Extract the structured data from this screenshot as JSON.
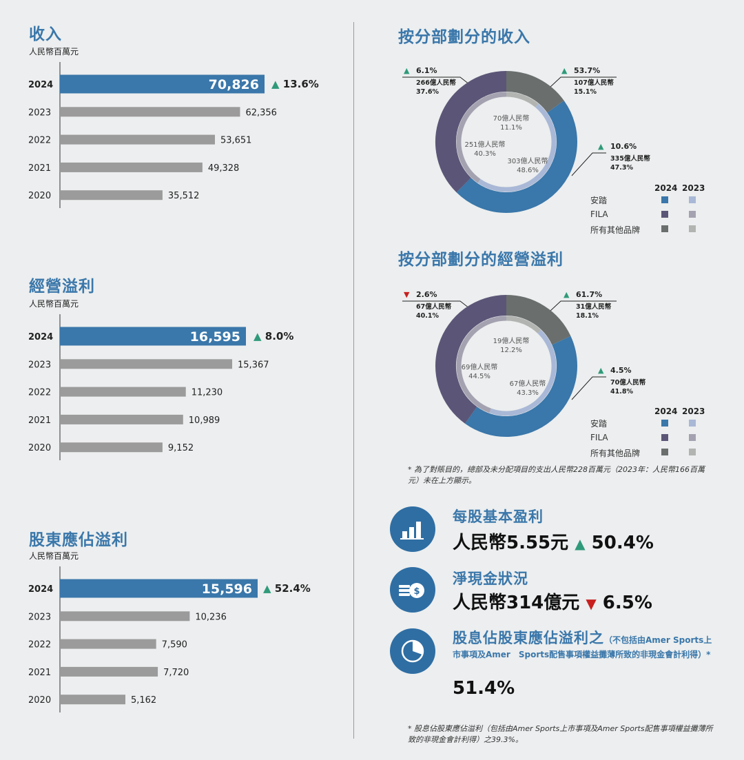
{
  "colors": {
    "accent": "#3a77aa",
    "bar_current": "#3a77aa",
    "bar_prior": "#9b9b9b",
    "anta_2024": "#3a77aa",
    "anta_2023": "#a9b8d6",
    "fila_2024": "#5b5677",
    "fila_2023": "#a4a2b0",
    "other_2024": "#6a6f6d",
    "other_2023": "#b2b4b2",
    "up": "#2f9a7a",
    "down": "#c8201f"
  },
  "revenue": {
    "title": "收入",
    "unit": "人民幣百萬元",
    "growth": "13.6%",
    "growth_dir": "up"
  },
  "op_profit": {
    "title": "經營溢利",
    "unit": "人民幣百萬元",
    "growth": "8.0%",
    "growth_dir": "up"
  },
  "shareholder_profit": {
    "title": "股東應佔溢利",
    "unit": "人民幣百萬元",
    "growth": "52.4%",
    "growth_dir": "up"
  },
  "seg_revenue": {
    "title": "按分部劃分的收入",
    "callouts": {
      "fila": {
        "change": "6.1%",
        "dir": "up",
        "amount": "266億人民幣",
        "share": "37.6%"
      },
      "other": {
        "change": "53.7%",
        "dir": "up",
        "amount": "107億人民幣",
        "share": "15.1%"
      },
      "anta": {
        "change": "10.6%",
        "dir": "up",
        "amount": "335億人民幣",
        "share": "47.3%"
      }
    },
    "inner": {
      "other": {
        "amount": "70億人民幣",
        "share": "11.1%"
      },
      "fila": {
        "amount": "251億人民幣",
        "share": "40.3%"
      },
      "anta": {
        "amount": "303億人民幣",
        "share": "48.6%"
      }
    }
  },
  "seg_profit": {
    "title": "按分部劃分的經營溢利",
    "callouts": {
      "fila": {
        "change": "2.6%",
        "dir": "down",
        "amount": "67億人民幣",
        "share": "40.1%"
      },
      "other": {
        "change": "61.7%",
        "dir": "up",
        "amount": "31億人民幣",
        "share": "18.1%"
      },
      "anta": {
        "change": "4.5%",
        "dir": "up",
        "amount": "70億人民幣",
        "share": "41.8%"
      }
    },
    "inner": {
      "other": {
        "amount": "19億人民幣",
        "share": "12.2%"
      },
      "fila": {
        "amount": "69億人民幣",
        "share": "44.5%"
      },
      "anta": {
        "amount": "67億人民幣",
        "share": "43.3%"
      }
    }
  },
  "legend": {
    "year_2024": "2024",
    "year_2023": "2023",
    "anta": "安踏",
    "fila": "FILA",
    "other": "所有其他品牌"
  },
  "note_segment": "* 為了對賬目的，總部及未分配項目的支出人民幣228百萬元（2023年：人民幣166百萬元）未在上方顯示。",
  "kpi": {
    "eps": {
      "title": "每股基本盈利",
      "value": "人民幣5.55元",
      "change": "50.4%",
      "dir": "up"
    },
    "cash": {
      "title": "淨現金狀況",
      "value": "人民幣314億元",
      "change": "6.5%",
      "dir": "down"
    },
    "payout": {
      "title": "股息佔股東應佔溢利之",
      "title_small": "（不包括由Amer Sports上市事項及Amer　Sports配售事項權益攤薄所致的非現金會計利得）*",
      "value": "51.4%"
    }
  },
  "note_payout": "* 股息佔股東應佔溢利（包括由Amer Sports上市事項及Amer Sports配售事項權益攤薄所致的非現金會計利得）之39.3%。",
  "chart_data": [
    {
      "type": "bar",
      "title": "收入",
      "ylabel": "人民幣百萬元",
      "categories": [
        "2024",
        "2023",
        "2022",
        "2021",
        "2020"
      ],
      "values": [
        70826,
        62356,
        53651,
        49328,
        35512
      ],
      "labels": [
        "70,826",
        "62,356",
        "53,651",
        "49,328",
        "35,512"
      ],
      "ylim": [
        0,
        70826
      ]
    },
    {
      "type": "bar",
      "title": "經營溢利",
      "ylabel": "人民幣百萬元",
      "categories": [
        "2024",
        "2023",
        "2022",
        "2021",
        "2020"
      ],
      "values": [
        16595,
        15367,
        11230,
        10989,
        9152
      ],
      "labels": [
        "16,595",
        "15,367",
        "11,230",
        "10,989",
        "9,152"
      ],
      "ylim": [
        0,
        16595
      ]
    },
    {
      "type": "bar",
      "title": "股東應佔溢利",
      "ylabel": "人民幣百萬元",
      "categories": [
        "2024",
        "2023",
        "2022",
        "2021",
        "2020"
      ],
      "values": [
        15596,
        10236,
        7590,
        7720,
        5162
      ],
      "labels": [
        "15,596",
        "10,236",
        "7,590",
        "7,720",
        "5,162"
      ],
      "ylim": [
        0,
        15596
      ]
    },
    {
      "type": "pie",
      "title": "按分部劃分的收入",
      "series": [
        {
          "name": "2024",
          "categories": [
            "安踏",
            "FILA",
            "所有其他品牌"
          ],
          "values": [
            47.3,
            37.6,
            15.1
          ]
        },
        {
          "name": "2023",
          "categories": [
            "安踏",
            "FILA",
            "所有其他品牌"
          ],
          "values": [
            48.6,
            40.3,
            11.1
          ]
        }
      ]
    },
    {
      "type": "pie",
      "title": "按分部劃分的經營溢利",
      "series": [
        {
          "name": "2024",
          "categories": [
            "安踏",
            "FILA",
            "所有其他品牌"
          ],
          "values": [
            41.8,
            40.1,
            18.1
          ]
        },
        {
          "name": "2023",
          "categories": [
            "安踏",
            "FILA",
            "所有其他品牌"
          ],
          "values": [
            43.3,
            44.5,
            12.2
          ]
        }
      ]
    }
  ]
}
